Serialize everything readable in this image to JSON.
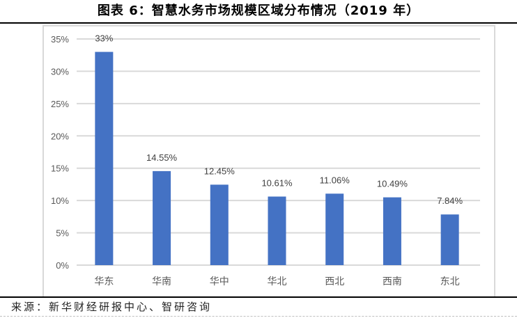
{
  "header": {
    "title": "图表 6：智慧水务市场规模区域分布情况（2019 年）"
  },
  "footer": {
    "source": "来源：新华财经研报中心、智研咨询"
  },
  "colors": {
    "bar": "#4472c4",
    "grid": "#d9d9d9",
    "axis_text": "#595959",
    "label_text": "#404040"
  },
  "chart_data": {
    "type": "bar",
    "title": "图表 6：智慧水务市场规模区域分布情况（2019 年）",
    "xlabel": "",
    "ylabel": "",
    "categories": [
      "华东",
      "华南",
      "华中",
      "华北",
      "西北",
      "西南",
      "东北"
    ],
    "values": [
      33,
      14.55,
      12.45,
      10.61,
      11.06,
      10.49,
      7.84
    ],
    "data_labels": [
      "33%",
      "14.55%",
      "12.45%",
      "10.61%",
      "11.06%",
      "10.49%",
      "7.84%"
    ],
    "ylim": [
      0,
      35
    ],
    "y_ticks": [
      0,
      5,
      10,
      15,
      20,
      25,
      30,
      35
    ],
    "y_tick_labels": [
      "0%",
      "5%",
      "10%",
      "15%",
      "20%",
      "25%",
      "30%",
      "35%"
    ],
    "grid": true,
    "legend": "none",
    "unit": "%"
  }
}
